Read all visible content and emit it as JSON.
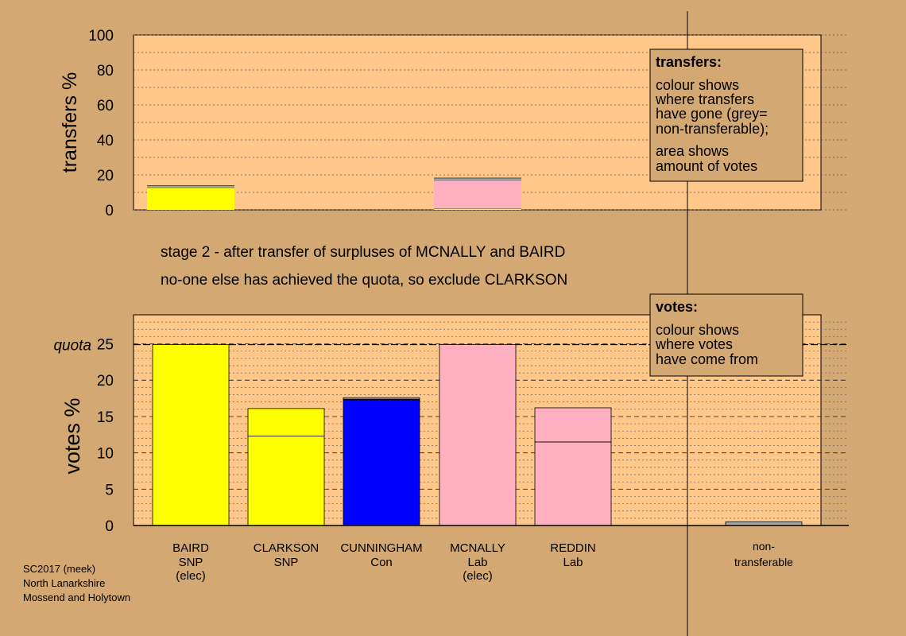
{
  "colors": {
    "background": "#d4a872",
    "plot_bg": "#ffc88a",
    "SNP": "#ffff00",
    "Con": "#0000ff",
    "Lab": "#ffb0c0",
    "nontransferable": "#a8a8a8",
    "box_bg": "#d4a872"
  },
  "stage_text": [
    "stage 2 - after transfer of surpluses of MCNALLY and BAIRD",
    "no-one else has achieved the quota, so exclude CLARKSON"
  ],
  "footer": [
    "SC2017 (meek)",
    "North Lanarkshire",
    "Mossend and Holytown"
  ],
  "chart_data": [
    {
      "type": "bar",
      "ylabel": "transfers %",
      "ylim": [
        0,
        100
      ],
      "yticks": [
        0,
        20,
        40,
        60,
        80,
        100
      ],
      "bars": [
        {
          "category": "BAIRD",
          "segments": [
            {
              "party": "SNP",
              "value": 12.8
            },
            {
              "party": "nontransferable",
              "value": 1.0
            }
          ]
        },
        {
          "category": "MCNALLY",
          "segments": [
            {
              "party": "SNP",
              "value": 0.8
            },
            {
              "party": "Lab",
              "value": 16.2
            },
            {
              "party": "nontransferable",
              "value": 1.2
            }
          ]
        }
      ],
      "legend_box": {
        "title": "transfers:",
        "lines": [
          "colour shows",
          "where transfers",
          "have gone (grey=",
          "non-transferable);",
          "area shows",
          "amount of votes"
        ]
      }
    },
    {
      "type": "bar",
      "ylabel": "votes %",
      "ylim": [
        0,
        29
      ],
      "yticks": [
        0,
        5,
        10,
        15,
        20,
        25
      ],
      "quota_label": "quota",
      "quota": 24.9,
      "categories": [
        {
          "name": "BAIRD",
          "party": "SNP",
          "note": "(elec)"
        },
        {
          "name": "CLARKSON",
          "party": "SNP",
          "note": ""
        },
        {
          "name": "CUNNINGHAM",
          "party": "Con",
          "note": ""
        },
        {
          "name": "MCNALLY",
          "party": "Lab",
          "note": "(elec)"
        },
        {
          "name": "REDDIN",
          "party": "Lab",
          "note": ""
        }
      ],
      "bars": [
        {
          "category": "BAIRD",
          "segments": [
            {
              "party": "SNP",
              "value": 24.9
            }
          ]
        },
        {
          "category": "CLARKSON",
          "segments": [
            {
              "party": "SNP",
              "value": 12.3
            },
            {
              "party": "SNP",
              "value": 3.8
            }
          ]
        },
        {
          "category": "CUNNINGHAM",
          "segments": [
            {
              "party": "Con",
              "value": 17.3
            },
            {
              "party": "SNP",
              "value": 0.1
            },
            {
              "party": "Lab",
              "value": 0.2
            }
          ]
        },
        {
          "category": "MCNALLY",
          "segments": [
            {
              "party": "Lab",
              "value": 24.9
            }
          ]
        },
        {
          "category": "REDDIN",
          "segments": [
            {
              "party": "Lab",
              "value": 11.5
            },
            {
              "party": "Lab",
              "value": 4.7
            }
          ]
        }
      ],
      "nontransferable": {
        "label": [
          "non-",
          "transferable"
        ],
        "value": 0.5
      },
      "legend_box": {
        "title": "votes:",
        "lines": [
          "colour shows",
          "where votes",
          "have come from"
        ]
      }
    }
  ]
}
